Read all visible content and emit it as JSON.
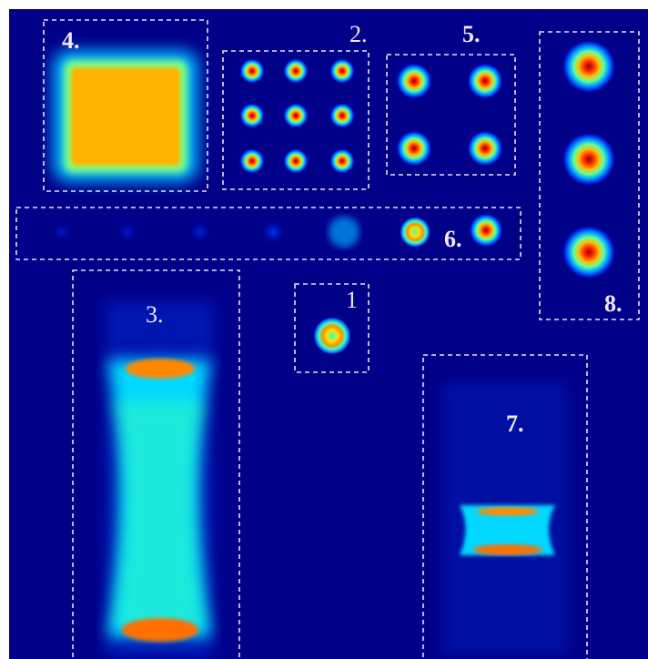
{
  "panels": [
    {
      "label": "1"
    },
    {
      "label": "2."
    },
    {
      "label": "3."
    },
    {
      "label": "4."
    },
    {
      "label": "5."
    },
    {
      "label": "6."
    },
    {
      "label": "7."
    },
    {
      "label": "8."
    }
  ]
}
